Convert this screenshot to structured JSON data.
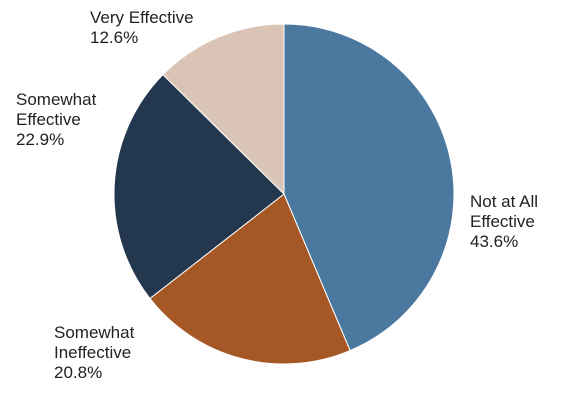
{
  "chart_data": {
    "type": "pie",
    "title": "",
    "start_angle_deg": 0,
    "direction": "clockwise",
    "slices": [
      {
        "label_lines": [
          "Not at All",
          "Effective"
        ],
        "value": 43.6,
        "value_label": "43.6%",
        "color": "#4b789f"
      },
      {
        "label_lines": [
          "Somewhat",
          "Ineffective"
        ],
        "value": 20.8,
        "value_label": "20.8%",
        "color": "#a65726"
      },
      {
        "label_lines": [
          "Somewhat",
          "Effective"
        ],
        "value": 22.9,
        "value_label": "22.9%",
        "color": "#23384f"
      },
      {
        "label_lines": [
          "Very Effective"
        ],
        "value": 12.6,
        "value_label": "12.6%",
        "color": "#dac4b5"
      }
    ]
  }
}
